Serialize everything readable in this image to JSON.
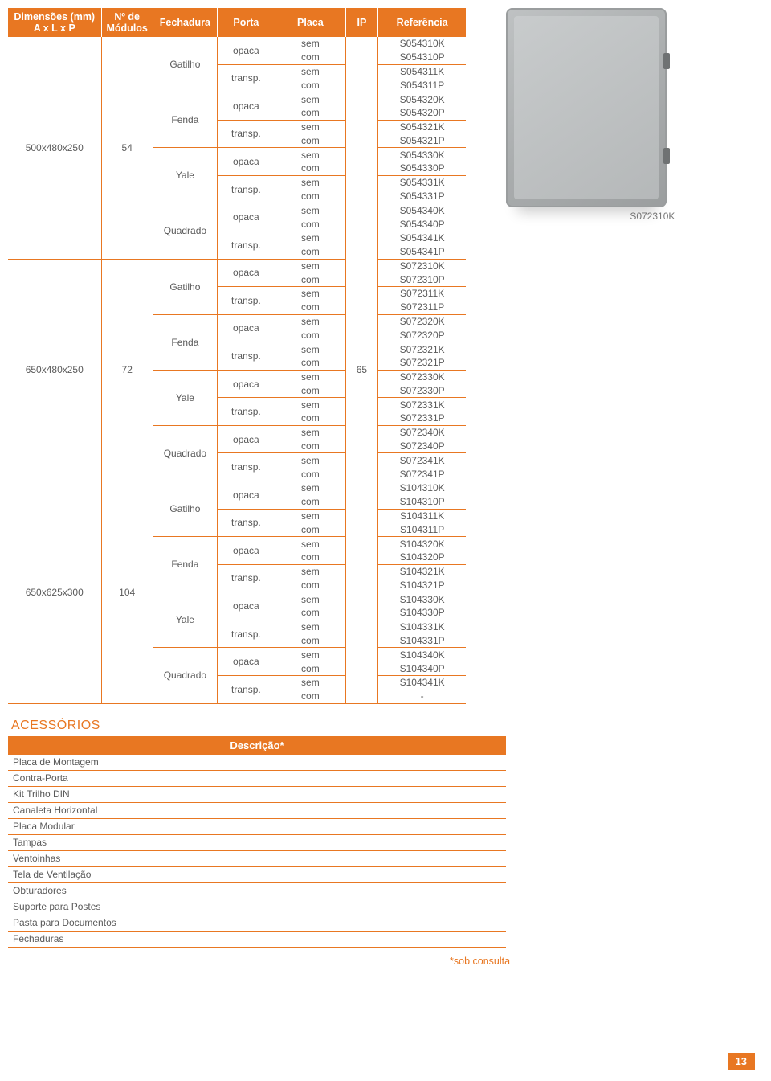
{
  "colors": {
    "accent": "#e87722",
    "header_text": "#ffffff",
    "body_text": "#5a5a5a",
    "border": "#e87722",
    "background": "#ffffff"
  },
  "main_table": {
    "headers": [
      "Dimensões (mm)\nA x L x P",
      "Nº de\nMódulos",
      "Fechadura",
      "Porta",
      "Placa",
      "IP",
      "Referência"
    ],
    "ip_value": "65",
    "groups": [
      {
        "dim": "500x480x250",
        "mod": "54",
        "fech": [
          {
            "name": "Gatilho",
            "portas": [
              {
                "name": "opaca",
                "rows": [
                  {
                    "placa": "sem",
                    "ref": "S054310K"
                  },
                  {
                    "placa": "com",
                    "ref": "S054310P"
                  }
                ]
              },
              {
                "name": "transp.",
                "rows": [
                  {
                    "placa": "sem",
                    "ref": "S054311K"
                  },
                  {
                    "placa": "com",
                    "ref": "S054311P"
                  }
                ]
              }
            ]
          },
          {
            "name": "Fenda",
            "portas": [
              {
                "name": "opaca",
                "rows": [
                  {
                    "placa": "sem",
                    "ref": "S054320K"
                  },
                  {
                    "placa": "com",
                    "ref": "S054320P"
                  }
                ]
              },
              {
                "name": "transp.",
                "rows": [
                  {
                    "placa": "sem",
                    "ref": "S054321K"
                  },
                  {
                    "placa": "com",
                    "ref": "S054321P"
                  }
                ]
              }
            ]
          },
          {
            "name": "Yale",
            "portas": [
              {
                "name": "opaca",
                "rows": [
                  {
                    "placa": "sem",
                    "ref": "S054330K"
                  },
                  {
                    "placa": "com",
                    "ref": "S054330P"
                  }
                ]
              },
              {
                "name": "transp.",
                "rows": [
                  {
                    "placa": "sem",
                    "ref": "S054331K"
                  },
                  {
                    "placa": "com",
                    "ref": "S054331P"
                  }
                ]
              }
            ]
          },
          {
            "name": "Quadrado",
            "portas": [
              {
                "name": "opaca",
                "rows": [
                  {
                    "placa": "sem",
                    "ref": "S054340K"
                  },
                  {
                    "placa": "com",
                    "ref": "S054340P"
                  }
                ]
              },
              {
                "name": "transp.",
                "rows": [
                  {
                    "placa": "sem",
                    "ref": "S054341K"
                  },
                  {
                    "placa": "com",
                    "ref": "S054341P"
                  }
                ]
              }
            ]
          }
        ]
      },
      {
        "dim": "650x480x250",
        "mod": "72",
        "fech": [
          {
            "name": "Gatilho",
            "portas": [
              {
                "name": "opaca",
                "rows": [
                  {
                    "placa": "sem",
                    "ref": "S072310K"
                  },
                  {
                    "placa": "com",
                    "ref": "S072310P"
                  }
                ]
              },
              {
                "name": "transp.",
                "rows": [
                  {
                    "placa": "sem",
                    "ref": "S072311K"
                  },
                  {
                    "placa": "com",
                    "ref": "S072311P"
                  }
                ]
              }
            ]
          },
          {
            "name": "Fenda",
            "portas": [
              {
                "name": "opaca",
                "rows": [
                  {
                    "placa": "sem",
                    "ref": "S072320K"
                  },
                  {
                    "placa": "com",
                    "ref": "S072320P"
                  }
                ]
              },
              {
                "name": "transp.",
                "rows": [
                  {
                    "placa": "sem",
                    "ref": "S072321K"
                  },
                  {
                    "placa": "com",
                    "ref": "S072321P"
                  }
                ]
              }
            ]
          },
          {
            "name": "Yale",
            "portas": [
              {
                "name": "opaca",
                "rows": [
                  {
                    "placa": "sem",
                    "ref": "S072330K"
                  },
                  {
                    "placa": "com",
                    "ref": "S072330P"
                  }
                ]
              },
              {
                "name": "transp.",
                "rows": [
                  {
                    "placa": "sem",
                    "ref": "S072331K"
                  },
                  {
                    "placa": "com",
                    "ref": "S072331P"
                  }
                ]
              }
            ]
          },
          {
            "name": "Quadrado",
            "portas": [
              {
                "name": "opaca",
                "rows": [
                  {
                    "placa": "sem",
                    "ref": "S072340K"
                  },
                  {
                    "placa": "com",
                    "ref": "S072340P"
                  }
                ]
              },
              {
                "name": "transp.",
                "rows": [
                  {
                    "placa": "sem",
                    "ref": "S072341K"
                  },
                  {
                    "placa": "com",
                    "ref": "S072341P"
                  }
                ]
              }
            ]
          }
        ]
      },
      {
        "dim": "650x625x300",
        "mod": "104",
        "fech": [
          {
            "name": "Gatilho",
            "portas": [
              {
                "name": "opaca",
                "rows": [
                  {
                    "placa": "sem",
                    "ref": "S104310K"
                  },
                  {
                    "placa": "com",
                    "ref": "S104310P"
                  }
                ]
              },
              {
                "name": "transp.",
                "rows": [
                  {
                    "placa": "sem",
                    "ref": "S104311K"
                  },
                  {
                    "placa": "com",
                    "ref": "S104311P"
                  }
                ]
              }
            ]
          },
          {
            "name": "Fenda",
            "portas": [
              {
                "name": "opaca",
                "rows": [
                  {
                    "placa": "sem",
                    "ref": "S104320K"
                  },
                  {
                    "placa": "com",
                    "ref": "S104320P"
                  }
                ]
              },
              {
                "name": "transp.",
                "rows": [
                  {
                    "placa": "sem",
                    "ref": "S104321K"
                  },
                  {
                    "placa": "com",
                    "ref": "S104321P"
                  }
                ]
              }
            ]
          },
          {
            "name": "Yale",
            "portas": [
              {
                "name": "opaca",
                "rows": [
                  {
                    "placa": "sem",
                    "ref": "S104330K"
                  },
                  {
                    "placa": "com",
                    "ref": "S104330P"
                  }
                ]
              },
              {
                "name": "transp.",
                "rows": [
                  {
                    "placa": "sem",
                    "ref": "S104331K"
                  },
                  {
                    "placa": "com",
                    "ref": "S104331P"
                  }
                ]
              }
            ]
          },
          {
            "name": "Quadrado",
            "portas": [
              {
                "name": "opaca",
                "rows": [
                  {
                    "placa": "sem",
                    "ref": "S104340K"
                  },
                  {
                    "placa": "com",
                    "ref": "S104340P"
                  }
                ]
              },
              {
                "name": "transp.",
                "rows": [
                  {
                    "placa": "sem",
                    "ref": "S104341K"
                  },
                  {
                    "placa": "com",
                    "ref": "-"
                  }
                ]
              }
            ]
          }
        ]
      }
    ]
  },
  "product_image_label": "S072310K",
  "accessories": {
    "title": "ACESSÓRIOS",
    "header": "Descrição*",
    "items": [
      "Placa de Montagem",
      "Contra-Porta",
      "Kit Trilho DIN",
      "Canaleta Horizontal",
      "Placa Modular",
      "Tampas",
      "Ventoinhas",
      "Tela de Ventilação",
      "Obturadores",
      "Suporte para Postes",
      "Pasta para Documentos",
      "Fechaduras"
    ],
    "footnote": "*sob consulta"
  },
  "page_number": "13"
}
